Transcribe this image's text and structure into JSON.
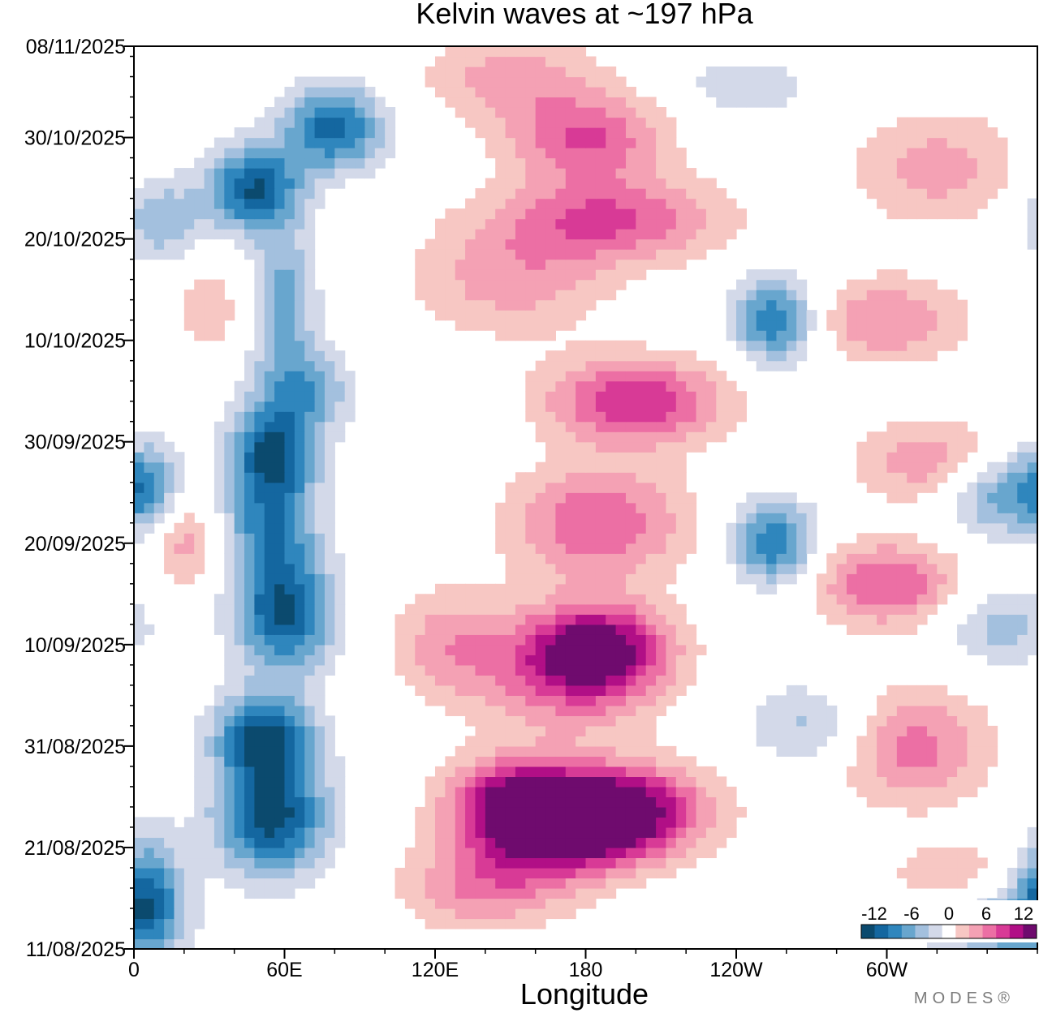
{
  "chart_data": {
    "type": "heatmap",
    "title": "Kelvin waves at ~197 hPa",
    "xlabel": "Longitude",
    "ylabel": "",
    "x_ticks": [
      {
        "lon": 0,
        "label": "0"
      },
      {
        "lon": 60,
        "label": "60E"
      },
      {
        "lon": 120,
        "label": "120E"
      },
      {
        "lon": 180,
        "label": "180"
      },
      {
        "lon": 240,
        "label": "120W"
      },
      {
        "lon": 300,
        "label": "60W"
      }
    ],
    "xlim": [
      0,
      360
    ],
    "y_ticks": [
      {
        "day": 0,
        "label": "11/08/2025"
      },
      {
        "day": 10,
        "label": "21/08/2025"
      },
      {
        "day": 20,
        "label": "31/08/2025"
      },
      {
        "day": 30,
        "label": "10/09/2025"
      },
      {
        "day": 40,
        "label": "20/09/2025"
      },
      {
        "day": 50,
        "label": "30/09/2025"
      },
      {
        "day": 60,
        "label": "10/10/2025"
      },
      {
        "day": 70,
        "label": "20/10/2025"
      },
      {
        "day": 80,
        "label": "30/10/2025"
      },
      {
        "day": 89,
        "label": "08/11/2025"
      }
    ],
    "ylim": [
      0,
      89
    ],
    "levels": [
      -14,
      -12,
      -10,
      -8,
      -6,
      -4,
      -2,
      2,
      4,
      6,
      8,
      10,
      12,
      14
    ],
    "colors": [
      "#0b4a6e",
      "#1467a0",
      "#2f86bd",
      "#68a6ce",
      "#a3c0de",
      "#d3d9e9",
      "#ffffff",
      "#f7c7c3",
      "#f4a1b4",
      "#ec6fa4",
      "#d83a96",
      "#b10f86",
      "#6f0b6e"
    ],
    "colorbar": {
      "ticks": [
        "-12",
        "-6",
        "0",
        "6",
        "12"
      ]
    },
    "features": [
      {
        "lon": 55,
        "day": 13,
        "amp": -13,
        "dlon": 16,
        "dday": 4
      },
      {
        "lon": 52,
        "day": 21,
        "amp": -12,
        "dlon": 14,
        "dday": 3
      },
      {
        "lon": 60,
        "day": 33,
        "amp": -12,
        "dlon": 14,
        "dday": 4
      },
      {
        "lon": 55,
        "day": 49,
        "amp": -11,
        "dlon": 12,
        "dday": 3
      },
      {
        "lon": 67,
        "day": 55,
        "amp": -7,
        "dlon": 14,
        "dday": 3
      },
      {
        "lon": 48,
        "day": 75,
        "amp": -12,
        "dlon": 13,
        "dday": 3
      },
      {
        "lon": 80,
        "day": 81,
        "amp": -11,
        "dlon": 14,
        "dday": 3
      },
      {
        "lon": 55,
        "day": 42,
        "amp": -9,
        "dlon": 13,
        "dday": 4
      },
      {
        "lon": 60,
        "day": 64,
        "amp": -7,
        "dlon": 9,
        "dday": 5
      },
      {
        "lon": 5,
        "day": 6,
        "amp": -9,
        "dlon": 10,
        "dday": 4
      },
      {
        "lon": 5,
        "day": 46,
        "amp": -7,
        "dlon": 9,
        "dday": 3
      },
      {
        "lon": 10,
        "day": 72,
        "amp": -6,
        "dlon": 12,
        "dday": 3
      },
      {
        "lon": 345,
        "day": 3,
        "amp": -9,
        "dlon": 22,
        "dday": 3
      },
      {
        "lon": 345,
        "day": 45,
        "amp": -8,
        "dlon": 16,
        "dday": 3
      },
      {
        "lon": 345,
        "day": 32,
        "amp": -5,
        "dlon": 16,
        "dday": 3
      },
      {
        "lon": 255,
        "day": 62,
        "amp": -10,
        "dlon": 12,
        "dday": 3
      },
      {
        "lon": 255,
        "day": 40,
        "amp": -10,
        "dlon": 12,
        "dday": 3
      },
      {
        "lon": 270,
        "day": 22,
        "amp": -5,
        "dlon": 18,
        "dday": 3
      },
      {
        "lon": 245,
        "day": 85,
        "amp": -4,
        "dlon": 18,
        "dday": 2
      },
      {
        "lon": 190,
        "day": 14,
        "amp": 14,
        "dlon": 26,
        "dday": 3
      },
      {
        "lon": 170,
        "day": 11,
        "amp": 10,
        "dlon": 26,
        "dday": 3
      },
      {
        "lon": 185,
        "day": 30,
        "amp": 10,
        "dlon": 20,
        "dday": 3
      },
      {
        "lon": 175,
        "day": 27,
        "amp": 8,
        "dlon": 25,
        "dday": 4
      },
      {
        "lon": 200,
        "day": 54,
        "amp": 10,
        "dlon": 25,
        "dday": 3
      },
      {
        "lon": 185,
        "day": 42,
        "amp": 8,
        "dlon": 25,
        "dday": 4
      },
      {
        "lon": 190,
        "day": 72,
        "amp": 8,
        "dlon": 32,
        "dday": 3
      },
      {
        "lon": 180,
        "day": 80,
        "amp": 8,
        "dlon": 22,
        "dday": 3
      },
      {
        "lon": 150,
        "day": 66,
        "amp": 5,
        "dlon": 28,
        "dday": 4
      },
      {
        "lon": 300,
        "day": 36,
        "amp": 8,
        "dlon": 22,
        "dday": 3
      },
      {
        "lon": 310,
        "day": 20,
        "amp": 7,
        "dlon": 22,
        "dday": 4
      },
      {
        "lon": 330,
        "day": 6,
        "amp": 6,
        "dlon": 20,
        "dday": 3
      },
      {
        "lon": 320,
        "day": 48,
        "amp": 6,
        "dlon": 22,
        "dday": 3
      },
      {
        "lon": 300,
        "day": 62,
        "amp": 6,
        "dlon": 22,
        "dday": 3
      },
      {
        "lon": 320,
        "day": 77,
        "amp": 5,
        "dlon": 24,
        "dday": 4
      },
      {
        "lon": 140,
        "day": 6,
        "amp": 6,
        "dlon": 24,
        "dday": 3
      },
      {
        "lon": 150,
        "day": 86,
        "amp": 5,
        "dlon": 25,
        "dday": 3
      },
      {
        "lon": 20,
        "day": 40,
        "amp": 5,
        "dlon": 9,
        "dday": 3
      },
      {
        "lon": 30,
        "day": 63,
        "amp": 4,
        "dlon": 9,
        "dday": 3
      },
      {
        "lon": 125,
        "day": 30,
        "amp": 5,
        "dlon": 16,
        "dday": 4
      },
      {
        "lon": 150,
        "day": 15,
        "amp": 9,
        "dlon": 18,
        "dday": 3
      }
    ]
  },
  "watermark": "MODES®"
}
